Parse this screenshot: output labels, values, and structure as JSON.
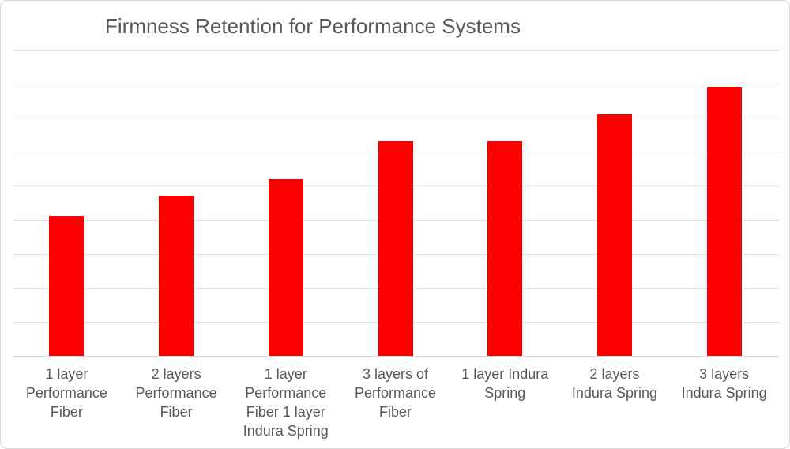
{
  "chart_data": {
    "type": "bar",
    "title": "Firmness Retention for Performance Systems",
    "categories": [
      "1 layer Performance Fiber",
      "2 layers Performance Fiber",
      "1 layer Performance Fiber 1 layer Indura Spring",
      "3 layers of Performance Fiber",
      "1 layer Indura Spring",
      "2 layers Indura Spring",
      "3 layers Indura Spring"
    ],
    "values": [
      41,
      47,
      52,
      63,
      63,
      71,
      79
    ],
    "xlabel": "",
    "ylabel": "",
    "ylim": [
      0,
      90
    ],
    "grid_step": 10,
    "grid": true,
    "y_tick_labels_visible": false,
    "legend_position": "none",
    "bar_color": "#ff0000"
  },
  "colors": {
    "bar": "#ff0000",
    "gridline": "#e2e2e2",
    "axis_line": "#dcdcdc",
    "title_text": "#595959",
    "label_text": "#595959",
    "background": "#ffffff",
    "card_border": "#d9d9d9"
  }
}
